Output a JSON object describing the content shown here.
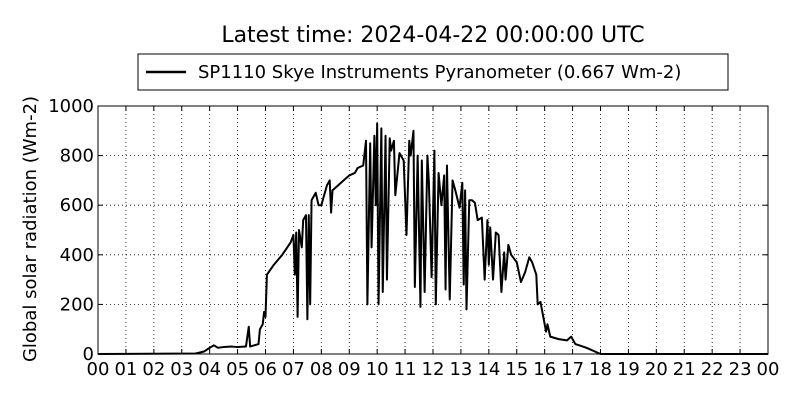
{
  "chart_data": {
    "type": "line",
    "title": "Latest time: 2024-04-22 00:00:00 UTC",
    "ylabel": "Global solar radiation (Wm-2)",
    "grid": true,
    "legend": "upper center",
    "xlim": [
      0,
      24
    ],
    "ylim": [
      0,
      1000
    ],
    "xticks": [
      {
        "value": 0,
        "label": "00"
      },
      {
        "value": 1,
        "label": "01"
      },
      {
        "value": 2,
        "label": "02"
      },
      {
        "value": 3,
        "label": "03"
      },
      {
        "value": 4,
        "label": "04"
      },
      {
        "value": 5,
        "label": "05"
      },
      {
        "value": 6,
        "label": "06"
      },
      {
        "value": 7,
        "label": "07"
      },
      {
        "value": 8,
        "label": "08"
      },
      {
        "value": 9,
        "label": "09"
      },
      {
        "value": 10,
        "label": "10"
      },
      {
        "value": 11,
        "label": "11"
      },
      {
        "value": 12,
        "label": "12"
      },
      {
        "value": 13,
        "label": "13"
      },
      {
        "value": 14,
        "label": "14"
      },
      {
        "value": 15,
        "label": "15"
      },
      {
        "value": 16,
        "label": "16"
      },
      {
        "value": 17,
        "label": "17"
      },
      {
        "value": 18,
        "label": "18"
      },
      {
        "value": 19,
        "label": "19"
      },
      {
        "value": 20,
        "label": "20"
      },
      {
        "value": 21,
        "label": "21"
      },
      {
        "value": 22,
        "label": "22"
      },
      {
        "value": 23,
        "label": "23"
      },
      {
        "value": 24,
        "label": "00"
      }
    ],
    "yticks": [
      0,
      200,
      400,
      600,
      800,
      1000
    ],
    "x": [
      0,
      3.5,
      3.8,
      4.0,
      4.15,
      4.3,
      4.5,
      4.8,
      5.0,
      5.3,
      5.4,
      5.45,
      5.6,
      5.75,
      5.8,
      5.9,
      5.95,
      6.0,
      6.05,
      6.3,
      6.6,
      6.9,
      7.0,
      7.05,
      7.1,
      7.15,
      7.2,
      7.3,
      7.35,
      7.45,
      7.5,
      7.55,
      7.6,
      7.65,
      7.8,
      7.9,
      8.0,
      8.2,
      8.3,
      8.35,
      8.4,
      8.6,
      8.8,
      9.0,
      9.2,
      9.3,
      9.5,
      9.6,
      9.65,
      9.75,
      9.8,
      9.9,
      9.95,
      10.0,
      10.05,
      10.15,
      10.2,
      10.3,
      10.35,
      10.45,
      10.5,
      10.6,
      10.65,
      10.8,
      10.95,
      11.05,
      11.15,
      11.2,
      11.3,
      11.35,
      11.45,
      11.55,
      11.6,
      11.7,
      11.8,
      11.85,
      11.95,
      12.05,
      12.1,
      12.2,
      12.3,
      12.4,
      12.45,
      12.5,
      12.6,
      12.7,
      12.8,
      12.95,
      13.05,
      13.1,
      13.15,
      13.2,
      13.3,
      13.4,
      13.5,
      13.6,
      13.75,
      13.85,
      13.95,
      14.0,
      14.05,
      14.15,
      14.25,
      14.35,
      14.45,
      14.55,
      14.6,
      14.7,
      14.8,
      15.0,
      15.15,
      15.3,
      15.45,
      15.55,
      15.7,
      15.75,
      15.85,
      15.95,
      16.05,
      16.1,
      16.2,
      16.5,
      16.8,
      16.95,
      17.1,
      17.5,
      17.9,
      18.0,
      24
    ],
    "series": [
      {
        "name": "SP1110 Skye Instruments Pyranometer (0.667 Wm-2)",
        "color": "#000000",
        "values": [
          0,
          2,
          10,
          25,
          35,
          25,
          28,
          30,
          28,
          30,
          110,
          30,
          35,
          40,
          100,
          120,
          170,
          150,
          320,
          360,
          400,
          450,
          480,
          320,
          490,
          150,
          500,
          430,
          540,
          560,
          140,
          560,
          200,
          620,
          650,
          600,
          600,
          680,
          700,
          570,
          660,
          680,
          700,
          720,
          730,
          750,
          760,
          860,
          200,
          850,
          430,
          880,
          600,
          930,
          200,
          910,
          250,
          880,
          300,
          870,
          820,
          860,
          640,
          810,
          780,
          480,
          860,
          800,
          900,
          270,
          800,
          190,
          780,
          250,
          800,
          700,
          310,
          820,
          200,
          730,
          600,
          720,
          260,
          760,
          220,
          700,
          660,
          590,
          690,
          280,
          660,
          180,
          620,
          620,
          610,
          540,
          550,
          300,
          540,
          360,
          510,
          300,
          490,
          480,
          250,
          410,
          300,
          440,
          400,
          370,
          290,
          330,
          390,
          370,
          320,
          200,
          210,
          150,
          90,
          120,
          70,
          60,
          55,
          70,
          40,
          25,
          5,
          0,
          0
        ]
      }
    ]
  }
}
